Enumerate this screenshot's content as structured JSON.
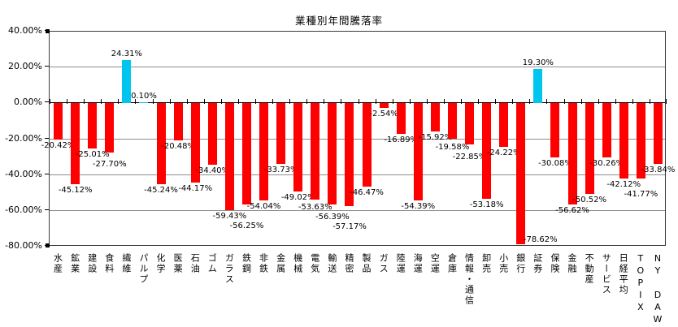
{
  "title": "業種別年間騰落率",
  "y_axis": {
    "tick_labels": [
      "40.00%",
      "20.00%",
      "0.00%",
      "-20.00%",
      "-40.00%",
      "-60.00%",
      "-80.00%"
    ]
  },
  "chart_data": {
    "type": "bar",
    "title": "業種別年間騰落率",
    "xlabel": "",
    "ylabel": "",
    "ylim": [
      -80,
      40
    ],
    "y_tick_step": 20,
    "grid": true,
    "legend": false,
    "value_label_suffix": "%",
    "categories": [
      "水産",
      "鉱業",
      "建設",
      "食料",
      "繊維",
      "パルプ",
      "化学",
      "医薬",
      "石油",
      "ゴム",
      "ガラス",
      "鉄鋼",
      "非鉄",
      "金属",
      "機械",
      "電気",
      "輸送",
      "精密",
      "製品",
      "ガス",
      "陸運",
      "海運",
      "空運",
      "倉庫",
      "情報・通信",
      "卸売",
      "小売",
      "銀行",
      "証券",
      "保険",
      "金融",
      "不動産",
      "サービス",
      "日経平均",
      "TOPIX",
      "NY DAW"
    ],
    "values": [
      -20.42,
      -45.12,
      -25.01,
      -27.7,
      24.31,
      0.1,
      -45.24,
      -20.48,
      -44.17,
      -34.4,
      -59.43,
      -56.25,
      -54.04,
      -33.73,
      -49.02,
      -53.63,
      -56.39,
      -57.17,
      -46.47,
      -2.54,
      -16.89,
      -54.39,
      -15.92,
      -19.58,
      -22.85,
      -53.18,
      -24.22,
      -78.62,
      19.3,
      -30.08,
      -56.62,
      -50.52,
      -30.26,
      -42.12,
      -41.77,
      -33.84
    ],
    "colors": {
      "negative_bar": "#FF0000",
      "positive_bar": "#00C6EF",
      "gridline": "#8C8C8C",
      "axis": "#000000",
      "text": "#000000",
      "background": "#FFFFFF"
    }
  }
}
